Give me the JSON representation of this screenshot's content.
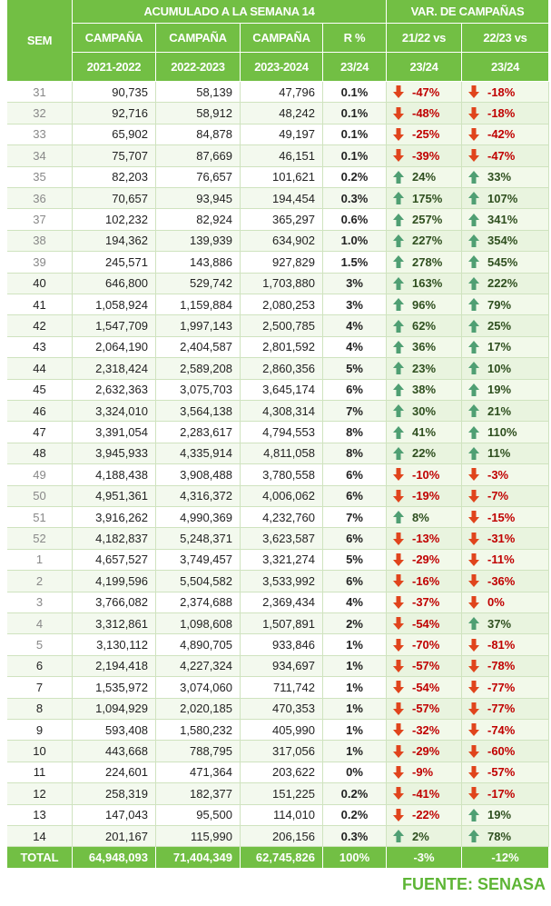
{
  "header": {
    "sem": "SEM",
    "group1": "ACUMULADO A LA SEMANA 14",
    "group2": "VAR. DE CAMPAÑAS",
    "columns": [
      [
        "CAMPAÑA",
        "2021-2022"
      ],
      [
        "CAMPAÑA",
        "2022-2023"
      ],
      [
        "CAMPAÑA",
        "2023-2024"
      ],
      [
        "R %",
        "23/24"
      ],
      [
        "21/22 vs",
        "23/24"
      ],
      [
        "22/23 vs",
        "23/24"
      ]
    ]
  },
  "rows": [
    [
      "31",
      "90,735",
      "58,139",
      "47,796",
      "0.1%",
      "-47%",
      "-18%"
    ],
    [
      "32",
      "92,716",
      "58,912",
      "48,242",
      "0.1%",
      "-48%",
      "-18%"
    ],
    [
      "33",
      "65,902",
      "84,878",
      "49,197",
      "0.1%",
      "-25%",
      "-42%"
    ],
    [
      "34",
      "75,707",
      "87,669",
      "46,151",
      "0.1%",
      "-39%",
      "-47%"
    ],
    [
      "35",
      "82,203",
      "76,657",
      "101,621",
      "0.2%",
      "24%",
      "33%"
    ],
    [
      "36",
      "70,657",
      "93,945",
      "194,454",
      "0.3%",
      "175%",
      "107%"
    ],
    [
      "37",
      "102,232",
      "82,924",
      "365,297",
      "0.6%",
      "257%",
      "341%"
    ],
    [
      "38",
      "194,362",
      "139,939",
      "634,902",
      "1.0%",
      "227%",
      "354%"
    ],
    [
      "39",
      "245,571",
      "143,886",
      "927,829",
      "1.5%",
      "278%",
      "545%"
    ],
    [
      "40",
      "646,800",
      "529,742",
      "1,703,880",
      "3%",
      "163%",
      "222%"
    ],
    [
      "41",
      "1,058,924",
      "1,159,884",
      "2,080,253",
      "3%",
      "96%",
      "79%"
    ],
    [
      "42",
      "1,547,709",
      "1,997,143",
      "2,500,785",
      "4%",
      "62%",
      "25%"
    ],
    [
      "43",
      "2,064,190",
      "2,404,587",
      "2,801,592",
      "4%",
      "36%",
      "17%"
    ],
    [
      "44",
      "2,318,424",
      "2,589,208",
      "2,860,356",
      "5%",
      "23%",
      "10%"
    ],
    [
      "45",
      "2,632,363",
      "3,075,703",
      "3,645,174",
      "6%",
      "38%",
      "19%"
    ],
    [
      "46",
      "3,324,010",
      "3,564,138",
      "4,308,314",
      "7%",
      "30%",
      "21%"
    ],
    [
      "47",
      "3,391,054",
      "2,283,617",
      "4,794,553",
      "8%",
      "41%",
      "110%"
    ],
    [
      "48",
      "3,945,933",
      "4,335,914",
      "4,811,058",
      "8%",
      "22%",
      "11%"
    ],
    [
      "49",
      "4,188,438",
      "3,908,488",
      "3,780,558",
      "6%",
      "-10%",
      "-3%"
    ],
    [
      "50",
      "4,951,361",
      "4,316,372",
      "4,006,062",
      "6%",
      "-19%",
      "-7%"
    ],
    [
      "51",
      "3,916,262",
      "4,990,369",
      "4,232,760",
      "7%",
      "8%",
      "-15%"
    ],
    [
      "52",
      "4,182,837",
      "5,248,371",
      "3,623,587",
      "6%",
      "-13%",
      "-31%"
    ],
    [
      "1",
      "4,657,527",
      "3,749,457",
      "3,321,274",
      "5%",
      "-29%",
      "-11%"
    ],
    [
      "2",
      "4,199,596",
      "5,504,582",
      "3,533,992",
      "6%",
      "-16%",
      "-36%"
    ],
    [
      "3",
      "3,766,082",
      "2,374,688",
      "2,369,434",
      "4%",
      "-37%",
      "0%"
    ],
    [
      "4",
      "3,312,861",
      "1,098,608",
      "1,507,891",
      "2%",
      "-54%",
      "37%"
    ],
    [
      "5",
      "3,130,112",
      "4,890,705",
      "933,846",
      "1%",
      "-70%",
      "-81%"
    ],
    [
      "6",
      "2,194,418",
      "4,227,324",
      "934,697",
      "1%",
      "-57%",
      "-78%"
    ],
    [
      "7",
      "1,535,972",
      "3,074,060",
      "711,742",
      "1%",
      "-54%",
      "-77%"
    ],
    [
      "8",
      "1,094,929",
      "2,020,185",
      "470,353",
      "1%",
      "-57%",
      "-77%"
    ],
    [
      "9",
      "593,408",
      "1,580,232",
      "405,990",
      "1%",
      "-32%",
      "-74%"
    ],
    [
      "10",
      "443,668",
      "788,795",
      "317,056",
      "1%",
      "-29%",
      "-60%"
    ],
    [
      "11",
      "224,601",
      "471,364",
      "203,622",
      "0%",
      "-9%",
      "-57%"
    ],
    [
      "12",
      "258,319",
      "182,377",
      "151,225",
      "0.2%",
      "-41%",
      "-17%"
    ],
    [
      "13",
      "147,043",
      "95,500",
      "114,010",
      "0.2%",
      "-22%",
      "19%"
    ],
    [
      "14",
      "201,167",
      "115,990",
      "206,156",
      "0.3%",
      "2%",
      "78%"
    ]
  ],
  "total": [
    "TOTAL",
    "64,948,093",
    "71,404,349",
    "62,745,826",
    "100%",
    "-3%",
    "-12%"
  ],
  "source": "FUENTE: SENASA"
}
